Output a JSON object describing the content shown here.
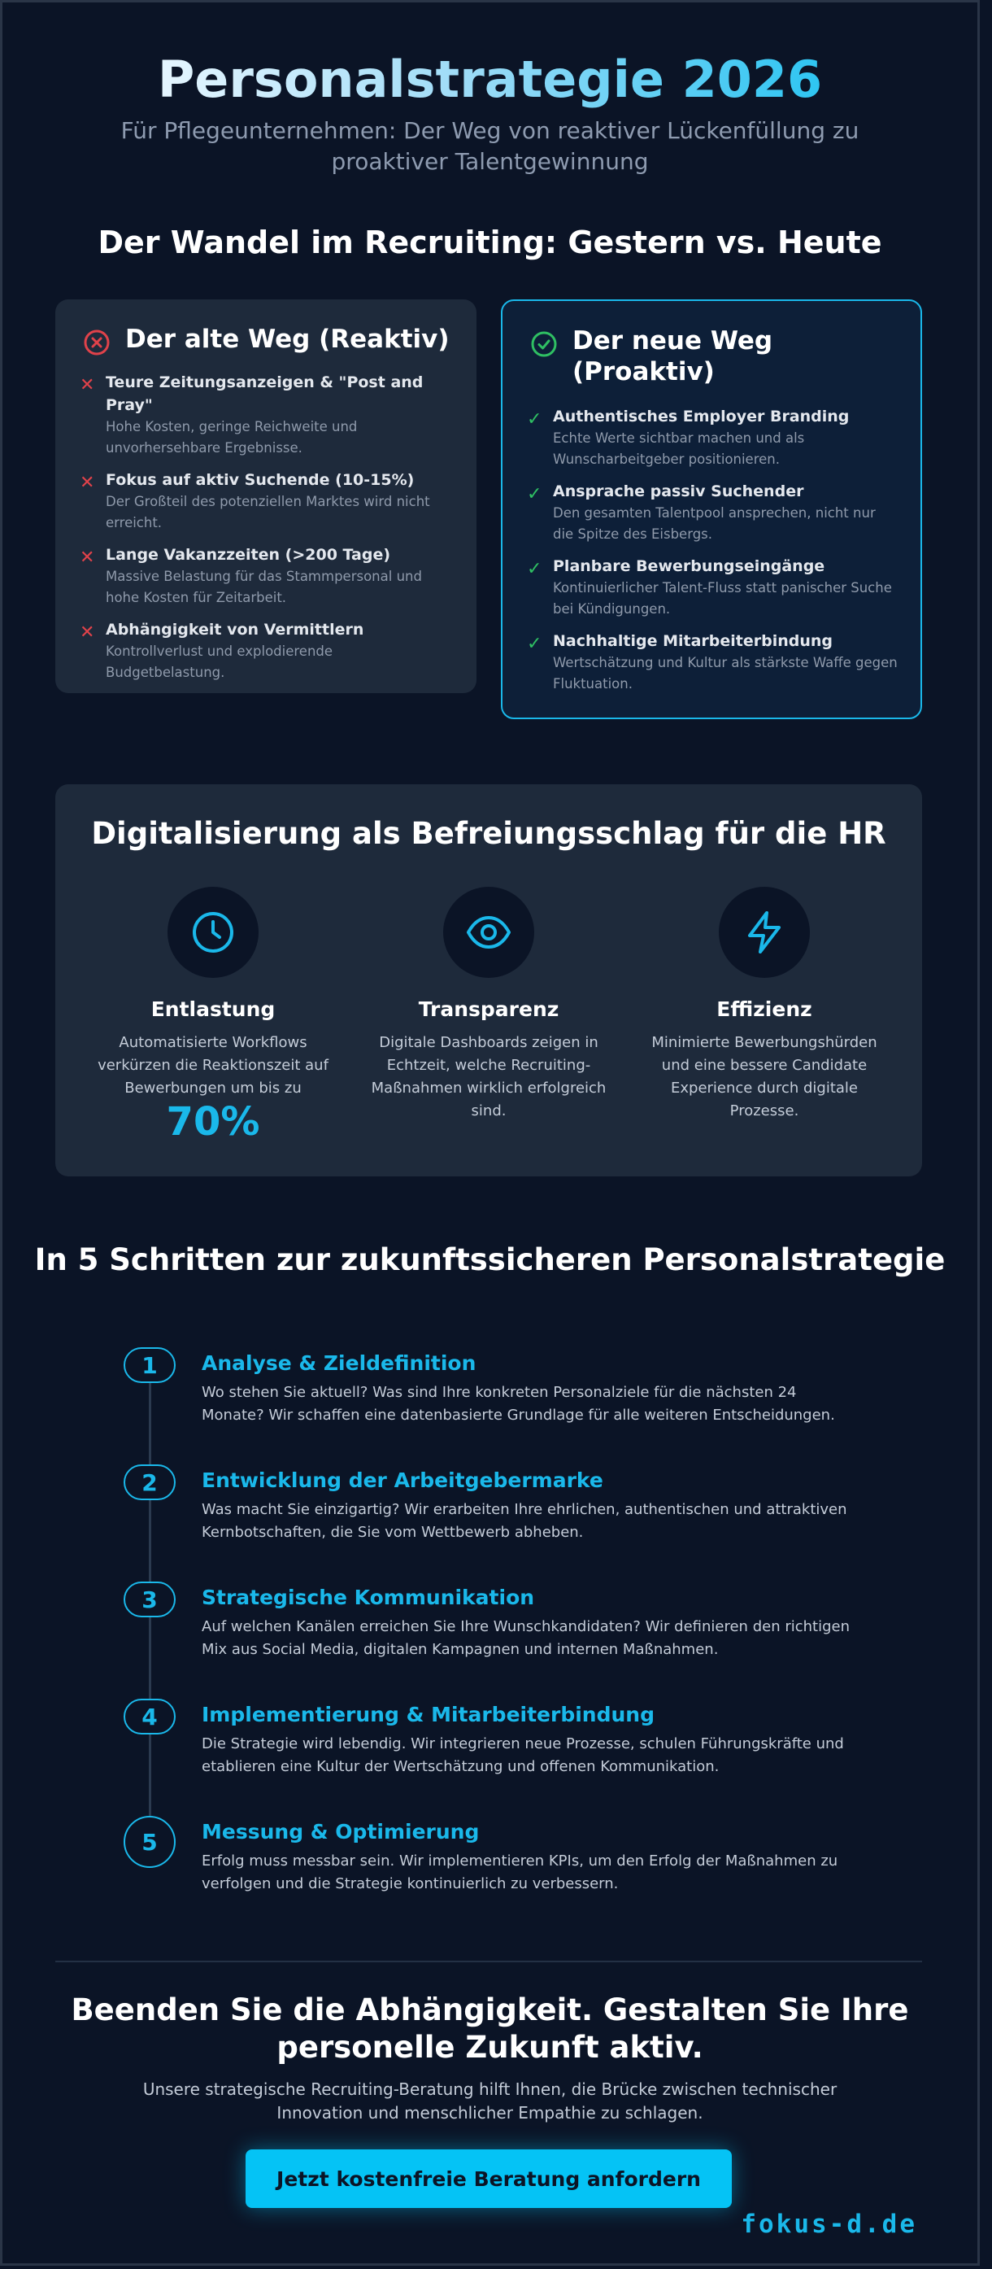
{
  "hero": {
    "title": "Personalstrategie 2026",
    "subtitle": "Für Pflegeunternehmen: Der Weg von reaktiver Lückenfüllung zu proaktiver Talentgewinnung"
  },
  "comparison": {
    "heading": "Der Wandel im Recruiting: Gestern vs. Heute",
    "old": {
      "title": "Der alte Weg (Reaktiv)",
      "icon": "x-circle-icon",
      "items": [
        {
          "title": "Teure Zeitungsanzeigen & \"Post and Pray\"",
          "desc": "Hohe Kosten, geringe Reichweite und unvorhersehbare Ergebnisse."
        },
        {
          "title": "Fokus auf aktiv Suchende (10-15%)",
          "desc": "Der Großteil des potenziellen Marktes wird nicht erreicht."
        },
        {
          "title": "Lange Vakanzzeiten (>200 Tage)",
          "desc": "Massive Belastung für das Stammpersonal und hohe Kosten für Zeitarbeit."
        },
        {
          "title": "Abhängigkeit von Vermittlern",
          "desc": "Kontrollverlust und explodierende Budgetbelastung."
        }
      ]
    },
    "new": {
      "title": "Der neue Weg (Proaktiv)",
      "icon": "check-circle-icon",
      "items": [
        {
          "title": "Authentisches Employer Branding",
          "desc": "Echte Werte sichtbar machen und als Wunscharbeitgeber positionieren."
        },
        {
          "title": "Ansprache passiv Suchender",
          "desc": "Den gesamten Talentpool ansprechen, nicht nur die Spitze des Eisbergs."
        },
        {
          "title": "Planbare Bewerbungseingänge",
          "desc": "Kontinuierlicher Talent-Fluss statt panischer Suche bei Kündigungen."
        },
        {
          "title": "Nachhaltige Mitarbeiterbindung",
          "desc": "Wertschätzung und Kultur als stärkste Waffe gegen Fluktuation."
        }
      ]
    }
  },
  "digital": {
    "heading": "Digitalisierung als Befreiungsschlag für die HR",
    "columns": [
      {
        "icon": "clock-icon",
        "title": "Entlastung",
        "desc": "Automatisierte Workflows verkürzen die Reaktionszeit auf Bewerbungen um bis zu",
        "highlight": "70%"
      },
      {
        "icon": "eye-icon",
        "title": "Transparenz",
        "desc": "Digitale Dashboards zeigen in Echtzeit, welche Recruiting-Maßnahmen wirklich erfolgreich sind."
      },
      {
        "icon": "lightning-icon",
        "title": "Effizienz",
        "desc": "Minimierte Bewerbungshürden und eine bessere Candidate Experience durch digitale Prozesse."
      }
    ]
  },
  "steps": {
    "heading": "In 5 Schritten zur zukunftssicheren Personalstrategie",
    "items": [
      {
        "num": "1",
        "title": "Analyse & Zieldefinition",
        "desc": "Wo stehen Sie aktuell? Was sind Ihre konkreten Personalziele für die nächsten 24 Monate? Wir schaffen eine datenbasierte Grundlage für alle weiteren Entscheidungen."
      },
      {
        "num": "2",
        "title": "Entwicklung der Arbeitgebermarke",
        "desc": "Was macht Sie einzigartig? Wir erarbeiten Ihre ehrlichen, authentischen und attraktiven Kernbotschaften, die Sie vom Wettbewerb abheben."
      },
      {
        "num": "3",
        "title": "Strategische Kommunikation",
        "desc": "Auf welchen Kanälen erreichen Sie Ihre Wunschkandidaten? Wir definieren den richtigen Mix aus Social Media, digitalen Kampagnen und internen Maßnahmen."
      },
      {
        "num": "4",
        "title": "Implementierung & Mitarbeiterbindung",
        "desc": "Die Strategie wird lebendig. Wir integrieren neue Prozesse, schulen Führungskräfte und etablieren eine Kultur der Wertschätzung und offenen Kommunikation."
      },
      {
        "num": "5",
        "title": "Messung & Optimierung",
        "desc": "Erfolg muss messbar sein. Wir implementieren KPIs, um den Erfolg der Maßnahmen zu verfolgen und die Strategie kontinuierlich zu verbessern."
      }
    ]
  },
  "cta": {
    "title": "Beenden Sie die Abhängigkeit. Gestalten Sie Ihre personelle Zukunft aktiv.",
    "subtitle": "Unsere strategische Recruiting-Beratung hilft Ihnen, die Brücke zwischen technischer Innovation und menschlicher Empathie zu schlagen.",
    "button": "Jetzt kostenfreie Beratung anfordern"
  },
  "brand": "fokus-d.de",
  "colors": {
    "accent": "#1ab8ea",
    "negative": "#e0424a",
    "positive": "#2fbf63",
    "background": "#0b1426",
    "card": "#1e2a3b"
  }
}
